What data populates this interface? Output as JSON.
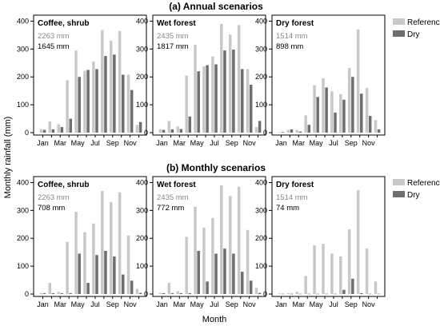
{
  "figure": {
    "ylabel": "Monthly rainfall (mm)",
    "xlabel": "Month",
    "legend": {
      "reference": "Reference",
      "dry": "Dry"
    }
  },
  "colors": {
    "reference": "#c8c8c8",
    "dry": "#6e6e6e",
    "annual_text": "#888888",
    "axis": "#000000"
  },
  "chart_data": [
    {
      "type": "bar",
      "section": "(a) Annual scenarios",
      "title": "Coffee, shrub",
      "annual_reference": "2263 mm",
      "annual_dry": "1645 mm",
      "x": [
        "Jan",
        "Feb",
        "Mar",
        "Apr",
        "May",
        "Jun",
        "Jul",
        "Aug",
        "Sep",
        "Oct",
        "Nov",
        "Dec"
      ],
      "xticks": [
        "Jan",
        "Mar",
        "May",
        "Jul",
        "Sep",
        "Nov"
      ],
      "ylim": [
        0,
        410
      ],
      "yticks": [
        0,
        100,
        200,
        300,
        400
      ],
      "series": [
        {
          "name": "Reference",
          "values": [
            12,
            40,
            30,
            188,
            295,
            222,
            255,
            368,
            330,
            365,
            208,
            28
          ]
        },
        {
          "name": "Dry",
          "values": [
            10,
            12,
            20,
            50,
            200,
            225,
            228,
            275,
            280,
            208,
            153,
            38
          ]
        }
      ]
    },
    {
      "type": "bar",
      "section": "(a) Annual scenarios",
      "title": "Wet forest",
      "annual_reference": "2435 mm",
      "annual_dry": "1817 mm",
      "x": [
        "Jan",
        "Feb",
        "Mar",
        "Apr",
        "May",
        "Jun",
        "Jul",
        "Aug",
        "Sep",
        "Oct",
        "Nov",
        "Dec"
      ],
      "xticks": [
        "Jan",
        "Mar",
        "May",
        "Jul",
        "Sep",
        "Nov"
      ],
      "ylim": [
        0,
        410
      ],
      "yticks": [
        0,
        100,
        200,
        300,
        400
      ],
      "series": [
        {
          "name": "Reference",
          "values": [
            12,
            42,
            22,
            205,
            315,
            238,
            273,
            390,
            352,
            386,
            228,
            20
          ]
        },
        {
          "name": "Dry",
          "values": [
            10,
            12,
            13,
            58,
            220,
            242,
            245,
            295,
            298,
            228,
            172,
            42
          ]
        }
      ]
    },
    {
      "type": "bar",
      "section": "(a) Annual scenarios",
      "title": "Dry forest",
      "annual_reference": "1514 mm",
      "annual_dry": "898 mm",
      "x": [
        "Jan",
        "Feb",
        "Mar",
        "Apr",
        "May",
        "Jun",
        "Jul",
        "Aug",
        "Sep",
        "Oct",
        "Nov",
        "Dec"
      ],
      "xticks": [
        "Jan",
        "Mar",
        "May",
        "Jul",
        "Sep",
        "Nov"
      ],
      "ylim": [
        0,
        410
      ],
      "yticks": [
        0,
        100,
        200,
        300,
        400
      ],
      "series": [
        {
          "name": "Reference",
          "values": [
            2,
            10,
            10,
            62,
            170,
            195,
            148,
            138,
            232,
            370,
            160,
            45
          ]
        },
        {
          "name": "Dry",
          "values": [
            2,
            12,
            4,
            28,
            128,
            162,
            72,
            118,
            200,
            140,
            60,
            12
          ]
        }
      ]
    },
    {
      "type": "bar",
      "section": "(b) Monthly scenarios",
      "title": "Coffee, shrub",
      "annual_reference": "2263 mm",
      "annual_dry": "708 mm",
      "x": [
        "Jan",
        "Feb",
        "Mar",
        "Apr",
        "May",
        "Jun",
        "Jul",
        "Aug",
        "Sep",
        "Oct",
        "Nov",
        "Dec"
      ],
      "xticks": [
        "Jan",
        "Mar",
        "May",
        "Jul",
        "Sep",
        "Nov"
      ],
      "ylim": [
        0,
        410
      ],
      "yticks": [
        0,
        100,
        200,
        300,
        400
      ],
      "series": [
        {
          "name": "Reference",
          "values": [
            4,
            40,
            8,
            187,
            295,
            222,
            253,
            370,
            330,
            365,
            210,
            18
          ]
        },
        {
          "name": "Dry",
          "values": [
            3,
            3,
            3,
            3,
            145,
            40,
            140,
            155,
            135,
            70,
            48,
            4
          ]
        }
      ]
    },
    {
      "type": "bar",
      "section": "(b) Monthly scenarios",
      "title": "Wet forest",
      "annual_reference": "2435 mm",
      "annual_dry": "772 mm",
      "x": [
        "Jan",
        "Feb",
        "Mar",
        "Apr",
        "May",
        "Jun",
        "Jul",
        "Aug",
        "Sep",
        "Oct",
        "Nov",
        "Dec"
      ],
      "xticks": [
        "Jan",
        "Mar",
        "May",
        "Jul",
        "Sep",
        "Nov"
      ],
      "ylim": [
        0,
        410
      ],
      "yticks": [
        0,
        100,
        200,
        300,
        400
      ],
      "series": [
        {
          "name": "Reference",
          "values": [
            4,
            40,
            10,
            205,
            313,
            238,
            273,
            390,
            352,
            385,
            230,
            22
          ]
        },
        {
          "name": "Dry",
          "values": [
            3,
            3,
            3,
            3,
            155,
            45,
            145,
            163,
            145,
            80,
            48,
            4
          ]
        }
      ]
    },
    {
      "type": "bar",
      "section": "(b) Monthly scenarios",
      "title": "Dry forest",
      "annual_reference": "1514 mm",
      "annual_dry": "74 mm",
      "x": [
        "Jan",
        "Feb",
        "Mar",
        "Apr",
        "May",
        "Jun",
        "Jul",
        "Aug",
        "Sep",
        "Oct",
        "Nov",
        "Dec"
      ],
      "xticks": [
        "Jan",
        "Mar",
        "May",
        "Jul",
        "Sep",
        "Nov"
      ],
      "ylim": [
        0,
        410
      ],
      "yticks": [
        0,
        100,
        200,
        300,
        400
      ],
      "series": [
        {
          "name": "Reference",
          "values": [
            2,
            3,
            8,
            65,
            175,
            180,
            145,
            135,
            232,
            373,
            163,
            45
          ]
        },
        {
          "name": "Dry",
          "values": [
            1,
            1,
            1,
            1,
            1,
            1,
            1,
            15,
            55,
            3,
            1,
            1
          ]
        }
      ]
    }
  ]
}
